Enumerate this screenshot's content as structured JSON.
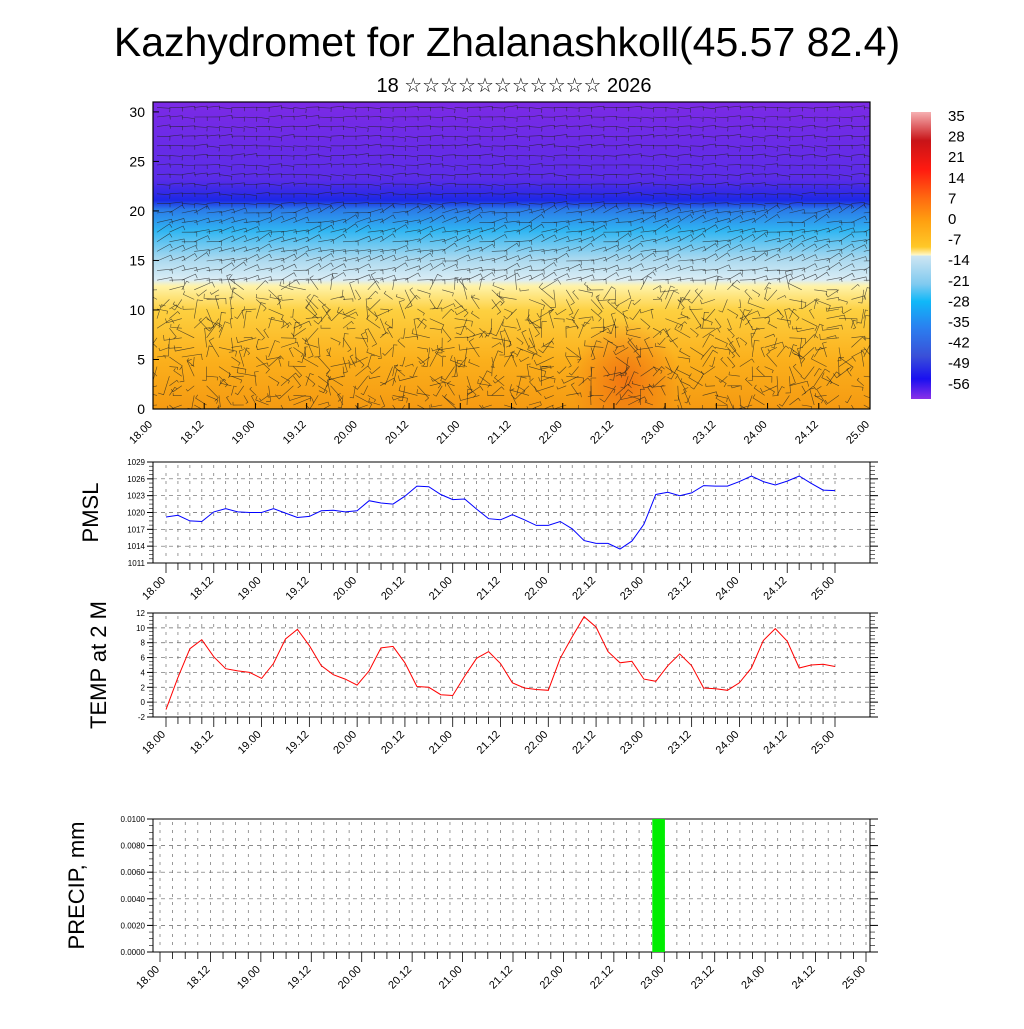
{
  "title": "Kazhydromet for Zhalanashkoll(45.57 82.4)",
  "subtitle": "18 ☆☆☆☆☆☆☆☆☆☆☆ 2026",
  "chart_data": [
    {
      "type": "heatmap",
      "name": "vertical cross-section (temperature shading with wind barbs)",
      "x_tick_labels": [
        "18.00",
        "18.12",
        "19.00",
        "19.12",
        "20.00",
        "20.12",
        "21.00",
        "21.12",
        "22.00",
        "22.12",
        "23.00",
        "23.12",
        "24.00",
        "24.12",
        "25.00"
      ],
      "y_ticks": [
        0,
        5,
        10,
        15,
        20,
        25,
        30
      ],
      "ylim": [
        0,
        31
      ],
      "colorbar": {
        "levels": [
          "35",
          "28",
          "21",
          "14",
          "7",
          "0",
          "-7",
          "-14",
          "-21",
          "-28",
          "-35",
          "-42",
          "-49",
          "-56"
        ],
        "colors": [
          "#f4a6a8",
          "#c81418",
          "#ff1a10",
          "#ff6a10",
          "#ffa010",
          "#ffc020",
          "#fff0a0",
          "#cfe6f2",
          "#7fcaf0",
          "#10b8f8",
          "#2a80f0",
          "#3a50d8",
          "#1a10f0",
          "#8a30e8"
        ]
      },
      "approx_profile_by_level": {
        "levels": [
          0,
          5,
          10,
          13,
          15,
          18,
          20,
          21,
          25,
          30
        ],
        "values": [
          10,
          7,
          2,
          -10,
          -18,
          -30,
          -42,
          -55,
          -58,
          -60
        ]
      }
    },
    {
      "type": "line",
      "ylabel": "PMSL",
      "ylim": [
        1011,
        1029
      ],
      "y_ticks": [
        "1011",
        "1014",
        "1017",
        "1020",
        "1023",
        "1026",
        "1029"
      ],
      "color": "#0000ff",
      "x_tick_labels": [
        "18.00",
        "18.12",
        "19.00",
        "19.12",
        "20.00",
        "20.12",
        "21.00",
        "21.12",
        "22.00",
        "22.12",
        "23.00",
        "23.12",
        "24.00",
        "24.12",
        "25.00"
      ],
      "step_hours": 3,
      "values": [
        1019.2,
        1019.5,
        1018.5,
        1018.4,
        1020.1,
        1020.7,
        1020.1,
        1020.0,
        1020.0,
        1020.7,
        1019.9,
        1019.1,
        1019.3,
        1020.3,
        1020.4,
        1020.1,
        1020.3,
        1022.1,
        1021.7,
        1021.5,
        1022.9,
        1024.7,
        1024.6,
        1023.2,
        1022.3,
        1022.4,
        1020.6,
        1018.9,
        1018.7,
        1019.6,
        1018.7,
        1017.7,
        1017.7,
        1018.4,
        1017.1,
        1015.0,
        1014.5,
        1014.5,
        1013.5,
        1014.9,
        1017.9,
        1023.2,
        1023.6,
        1023.0,
        1023.5,
        1024.8,
        1024.7,
        1024.7,
        1025.5,
        1026.5,
        1025.5,
        1024.9,
        1025.6,
        1026.5,
        1025.2,
        1024.0,
        1023.9
      ]
    },
    {
      "type": "line",
      "ylabel": "TEMP at 2 M",
      "ylim": [
        -2,
        12
      ],
      "y_ticks": [
        "-2",
        "0",
        "2",
        "4",
        "6",
        "8",
        "10",
        "12"
      ],
      "color": "#ff0000",
      "x_tick_labels": [
        "18.00",
        "18.12",
        "19.00",
        "19.12",
        "20.00",
        "20.12",
        "21.00",
        "21.12",
        "22.00",
        "22.12",
        "23.00",
        "23.12",
        "24.00",
        "24.12",
        "25.00"
      ],
      "step_hours": 3,
      "values": [
        -1.0,
        3.3,
        7.2,
        8.4,
        6.1,
        4.5,
        4.2,
        4.0,
        3.2,
        5.2,
        8.5,
        9.8,
        7.6,
        4.9,
        3.7,
        3.1,
        2.3,
        4.2,
        7.3,
        7.5,
        5.3,
        2.1,
        2.0,
        1.0,
        0.9,
        3.5,
        5.9,
        6.8,
        5.2,
        2.6,
        1.9,
        1.7,
        1.6,
        5.9,
        8.8,
        11.5,
        10.1,
        6.8,
        5.3,
        5.5,
        3.1,
        2.8,
        4.9,
        6.5,
        4.9,
        1.9,
        1.8,
        1.6,
        2.6,
        4.6,
        8.3,
        9.9,
        8.2,
        4.6,
        5.0,
        5.1,
        4.8
      ]
    },
    {
      "type": "bar",
      "ylabel": "PRECIP, mm",
      "ylim": [
        0,
        0.01
      ],
      "y_ticks": [
        "0.0000",
        "0.0020",
        "0.0040",
        "0.0060",
        "0.0080",
        "0.0100"
      ],
      "color": "#00ee00",
      "x_tick_labels": [
        "18.00",
        "18.12",
        "19.00",
        "19.12",
        "20.00",
        "20.12",
        "21.00",
        "21.12",
        "22.00",
        "22.12",
        "23.00",
        "23.12",
        "24.00",
        "24.12",
        "25.00"
      ],
      "step_hours": 3,
      "values": [
        0,
        0,
        0,
        0,
        0,
        0,
        0,
        0,
        0,
        0,
        0,
        0,
        0,
        0,
        0,
        0,
        0,
        0,
        0,
        0,
        0,
        0,
        0,
        0,
        0,
        0,
        0,
        0,
        0,
        0,
        0,
        0,
        0,
        0,
        0,
        0,
        0,
        0,
        0,
        0,
        0.01,
        0,
        0,
        0,
        0,
        0,
        0,
        0,
        0,
        0,
        0,
        0,
        0,
        0,
        0,
        0,
        0
      ]
    }
  ]
}
